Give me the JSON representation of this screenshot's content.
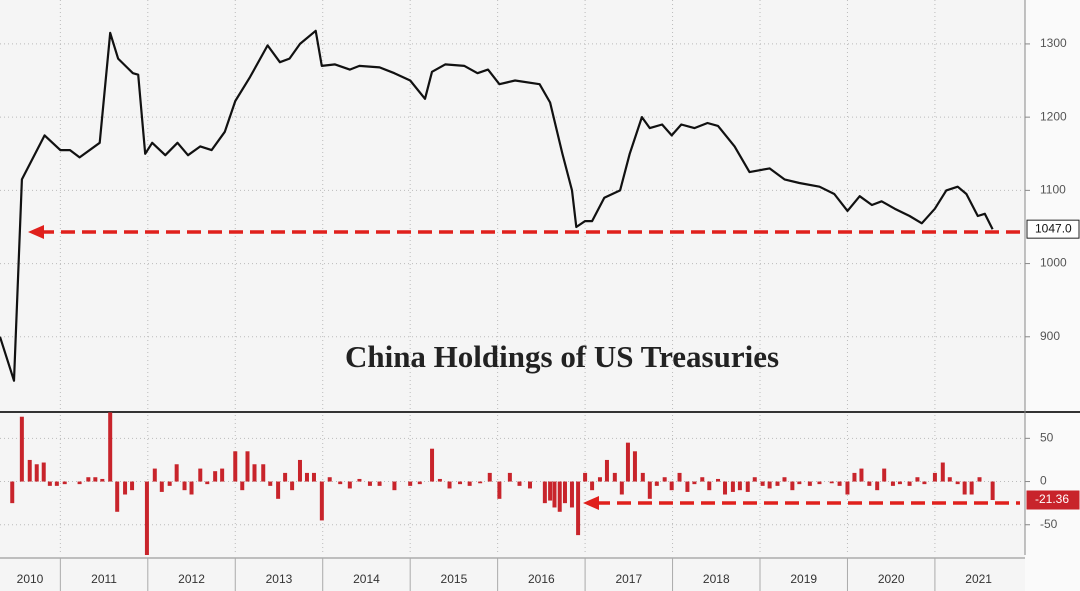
{
  "chart_data": [
    {
      "type": "line",
      "title": "China Holdings of US Treasuries",
      "color": "#111111",
      "x": [
        2010.31,
        2010.47,
        2010.56,
        2010.82,
        2011.0,
        2011.11,
        2011.22,
        2011.45,
        2011.57,
        2011.66,
        2011.83,
        2011.89,
        2011.97,
        2012.05,
        2012.2,
        2012.34,
        2012.46,
        2012.6,
        2012.73,
        2012.88,
        2013.0,
        2013.17,
        2013.37,
        2013.51,
        2013.62,
        2013.74,
        2013.92,
        2013.99,
        2014.14,
        2014.31,
        2014.42,
        2014.65,
        2014.82,
        2015.0,
        2015.17,
        2015.25,
        2015.4,
        2015.62,
        2015.77,
        2015.89,
        2016.02,
        2016.2,
        2016.48,
        2016.6,
        2016.74,
        2016.85,
        2016.9,
        2017.0,
        2017.08,
        2017.22,
        2017.4,
        2017.51,
        2017.65,
        2017.74,
        2017.88,
        2017.99,
        2018.1,
        2018.25,
        2018.4,
        2018.52,
        2018.71,
        2018.88,
        2019.11,
        2019.28,
        2019.45,
        2019.68,
        2019.85,
        2020.0,
        2020.14,
        2020.28,
        2020.39,
        2020.54,
        2020.71,
        2020.85,
        2021.0,
        2021.13,
        2021.26,
        2021.36,
        2021.49,
        2021.57,
        2021.66
      ],
      "values": [
        900,
        840,
        1115,
        1175,
        1155,
        1155,
        1145,
        1165,
        1315,
        1280,
        1260,
        1258,
        1150,
        1165,
        1148,
        1165,
        1148,
        1160,
        1155,
        1180,
        1222,
        1255,
        1298,
        1275,
        1280,
        1300,
        1318,
        1270,
        1272,
        1265,
        1270,
        1268,
        1260,
        1250,
        1225,
        1262,
        1272,
        1270,
        1260,
        1265,
        1245,
        1250,
        1245,
        1220,
        1150,
        1100,
        1050,
        1058,
        1058,
        1090,
        1100,
        1150,
        1200,
        1185,
        1190,
        1175,
        1190,
        1185,
        1192,
        1188,
        1160,
        1125,
        1130,
        1115,
        1110,
        1105,
        1095,
        1072,
        1092,
        1080,
        1085,
        1075,
        1065,
        1055,
        1075,
        1100,
        1105,
        1095,
        1065,
        1068,
        1047
      ],
      "value_labels": [
        null,
        null,
        null,
        null,
        null,
        null,
        null,
        null,
        null,
        null,
        null,
        null,
        null,
        null,
        null,
        null,
        null,
        null,
        null,
        null,
        null,
        null,
        null,
        null,
        null,
        null,
        null,
        null,
        null,
        null,
        null,
        null,
        null,
        null,
        null,
        null,
        null,
        null,
        null,
        null,
        null,
        null,
        null,
        null,
        null,
        null,
        null,
        null,
        null,
        null,
        null,
        null,
        null,
        null,
        null,
        null,
        null,
        null,
        null,
        null,
        null,
        null,
        null,
        null,
        null,
        null,
        null,
        null,
        null,
        null,
        null,
        null,
        null,
        null,
        null,
        null,
        null,
        null,
        null,
        null,
        "1047.0"
      ],
      "xlim": [
        2010.31,
        2022.03
      ],
      "ylim": [
        800,
        1360
      ],
      "yticks": [
        900,
        1000,
        1100,
        1200,
        1300
      ],
      "grid": true
    },
    {
      "type": "bar",
      "color": "#c8242b",
      "x": [
        2010.45,
        2010.56,
        2010.65,
        2010.73,
        2010.81,
        2010.88,
        2010.96,
        2011.05,
        2011.22,
        2011.32,
        2011.4,
        2011.48,
        2011.57,
        2011.65,
        2011.74,
        2011.82,
        2011.99,
        2012.08,
        2012.16,
        2012.25,
        2012.33,
        2012.42,
        2012.5,
        2012.6,
        2012.68,
        2012.77,
        2012.85,
        2013.0,
        2013.08,
        2013.14,
        2013.22,
        2013.32,
        2013.4,
        2013.49,
        2013.57,
        2013.65,
        2013.74,
        2013.82,
        2013.9,
        2013.99,
        2014.08,
        2014.2,
        2014.31,
        2014.42,
        2014.54,
        2014.65,
        2014.82,
        2015.0,
        2015.11,
        2015.25,
        2015.34,
        2015.45,
        2015.57,
        2015.68,
        2015.8,
        2015.91,
        2016.02,
        2016.14,
        2016.25,
        2016.37,
        2016.54,
        2016.6,
        2016.65,
        2016.71,
        2016.77,
        2016.85,
        2016.92,
        2017.0,
        2017.08,
        2017.17,
        2017.25,
        2017.34,
        2017.42,
        2017.49,
        2017.57,
        2017.66,
        2017.74,
        2017.82,
        2017.91,
        2017.99,
        2018.08,
        2018.17,
        2018.25,
        2018.34,
        2018.42,
        2018.52,
        2018.6,
        2018.69,
        2018.77,
        2018.86,
        2018.94,
        2019.03,
        2019.11,
        2019.2,
        2019.28,
        2019.37,
        2019.45,
        2019.57,
        2019.68,
        2019.82,
        2019.91,
        2020.0,
        2020.08,
        2020.16,
        2020.25,
        2020.34,
        2020.42,
        2020.52,
        2020.6,
        2020.71,
        2020.8,
        2020.88,
        2021.0,
        2021.09,
        2021.17,
        2021.26,
        2021.34,
        2021.42,
        2021.51,
        2021.66
      ],
      "values": [
        -25,
        75,
        25,
        20,
        22,
        -5,
        -5,
        -3,
        -3,
        5,
        5,
        3,
        80,
        -35,
        -15,
        -10,
        -85,
        15,
        -12,
        -5,
        20,
        -10,
        -15,
        15,
        -3,
        12,
        15,
        35,
        -10,
        35,
        20,
        20,
        -5,
        -20,
        10,
        -10,
        25,
        10,
        10,
        -45,
        5,
        -3,
        -8,
        3,
        -5,
        -5,
        -10,
        -5,
        -3,
        38,
        3,
        -8,
        -3,
        -5,
        -2,
        10,
        -20,
        10,
        -5,
        -8,
        -25,
        -22,
        -30,
        -35,
        -25,
        -30,
        -62,
        10,
        -10,
        5,
        25,
        10,
        -15,
        45,
        35,
        10,
        -20,
        -5,
        5,
        -10,
        10,
        -12,
        -3,
        5,
        -10,
        3,
        -15,
        -12,
        -10,
        -12,
        5,
        -5,
        -8,
        -5,
        5,
        -10,
        -3,
        -5,
        -3,
        -2,
        -5,
        -15,
        10,
        15,
        -5,
        -10,
        15,
        -5,
        -3,
        -5,
        5,
        -3,
        10,
        22,
        5,
        -3,
        -15,
        -15,
        5,
        -21.36
      ],
      "value_labels": [
        null,
        null,
        null,
        null,
        null,
        null,
        null,
        null,
        null,
        null,
        null,
        null,
        null,
        null,
        null,
        null,
        null,
        null,
        null,
        null,
        null,
        null,
        null,
        null,
        null,
        null,
        null,
        null,
        null,
        null,
        null,
        null,
        null,
        null,
        null,
        null,
        null,
        null,
        null,
        null,
        null,
        null,
        null,
        null,
        null,
        null,
        null,
        null,
        null,
        null,
        null,
        null,
        null,
        null,
        null,
        null,
        null,
        null,
        null,
        null,
        null,
        null,
        null,
        null,
        null,
        null,
        null,
        null,
        null,
        null,
        null,
        null,
        null,
        null,
        null,
        null,
        null,
        null,
        null,
        null,
        null,
        null,
        null,
        null,
        null,
        null,
        null,
        null,
        null,
        null,
        null,
        null,
        null,
        null,
        null,
        null,
        null,
        null,
        null,
        null,
        null,
        null,
        null,
        null,
        null,
        null,
        null,
        null,
        null,
        null,
        null,
        null,
        null,
        null,
        null,
        null,
        null,
        null,
        null,
        "-21.36"
      ],
      "xlim": [
        2010.31,
        2022.03
      ],
      "ylim": [
        -85,
        77
      ],
      "yticks": [
        -50,
        0,
        50
      ],
      "xticks": [
        {
          "value": 2010.5,
          "label": "2010"
        },
        {
          "value": 2011.5,
          "label": "2011"
        },
        {
          "value": 2012.5,
          "label": "2012"
        },
        {
          "value": 2013.5,
          "label": "2013"
        },
        {
          "value": 2014.5,
          "label": "2014"
        },
        {
          "value": 2015.5,
          "label": "2015"
        },
        {
          "value": 2016.5,
          "label": "2016"
        },
        {
          "value": 2017.5,
          "label": "2017"
        },
        {
          "value": 2018.5,
          "label": "2018"
        },
        {
          "value": 2019.5,
          "label": "2019"
        },
        {
          "value": 2020.5,
          "label": "2020"
        },
        {
          "value": 2021.5,
          "label": "2021"
        }
      ],
      "grid": true
    }
  ]
}
